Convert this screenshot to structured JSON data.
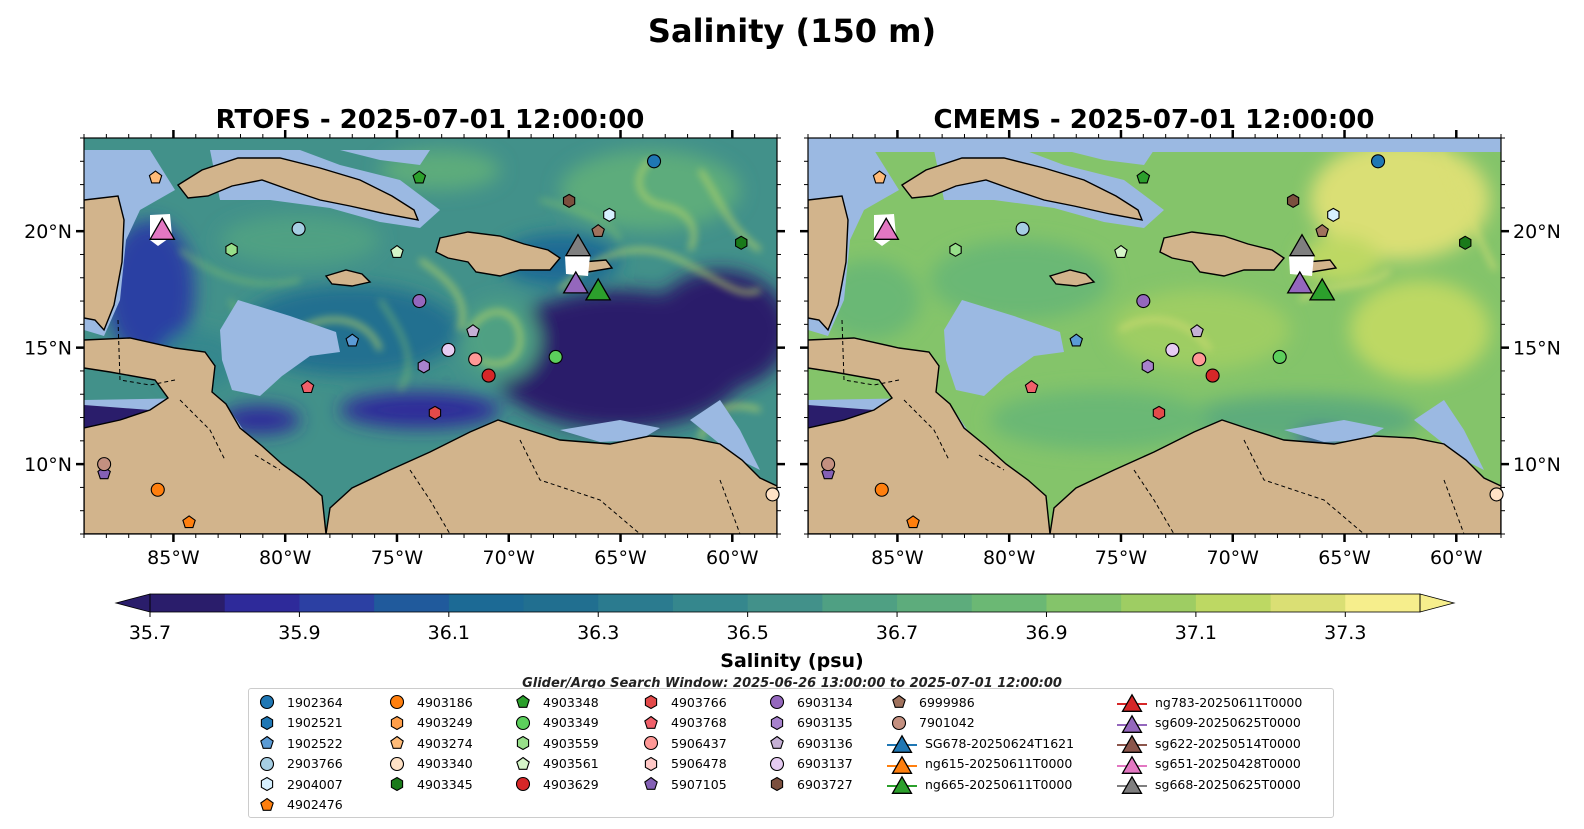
{
  "figure": {
    "suptitle": "Salinity (150 m)",
    "search_window": "Glider/Argo Search Window: 2025-06-26 13:00:00 to 2025-07-01 12:00:00"
  },
  "panels": [
    {
      "title": "RTOFS - 2025-07-01 12:00:00",
      "model": "RTOFS"
    },
    {
      "title": "CMEMS - 2025-07-01 12:00:00",
      "model": "CMEMS"
    }
  ],
  "map_extent": {
    "lon": [
      -89,
      -58
    ],
    "lat": [
      7,
      24
    ]
  },
  "axis_ticks": {
    "lon_labels": [
      "85°W",
      "80°W",
      "75°W",
      "70°W",
      "65°W",
      "60°W"
    ],
    "lon_values": [
      -85,
      -80,
      -75,
      -70,
      -65,
      -60
    ],
    "lat_labels": [
      "10°N",
      "15°N",
      "20°N"
    ],
    "lat_values": [
      10,
      15,
      20
    ]
  },
  "colors": {
    "land": "#d2b48c",
    "shelf": "#9bb9e2",
    "coast": "#000000"
  },
  "colorbar": {
    "label": "Salinity (psu)",
    "ticks": [
      "35.7",
      "35.9",
      "36.1",
      "36.3",
      "36.5",
      "36.7",
      "36.9",
      "37.1",
      "37.3"
    ],
    "tick_values": [
      35.7,
      35.9,
      36.1,
      36.3,
      36.5,
      36.7,
      36.9,
      37.1,
      37.3
    ],
    "vmin": 35.7,
    "vmax": 37.4,
    "step": 0.1,
    "colormap": "haline",
    "extend": "both",
    "colors": [
      "#2a1d6b",
      "#2e2a9a",
      "#2c40a3",
      "#205a9c",
      "#1c6a95",
      "#216f90",
      "#2b7b8f",
      "#35878d",
      "#42918a",
      "#4fa083",
      "#5dac7c",
      "#6bb874",
      "#84c46a",
      "#9ecd63",
      "#bdd863",
      "#dadf74",
      "#f6ee8c"
    ]
  },
  "markers": {
    "argo": [
      {
        "id": "1902364",
        "shape": "circle",
        "color": "#1f77b4",
        "lon": -63.5,
        "lat": 23.0
      },
      {
        "id": "1902521",
        "shape": "hexagon",
        "color": "#1f77b4",
        "lon": null,
        "lat": null
      },
      {
        "id": "1902522",
        "shape": "pentagon",
        "color": "#5b9bd5",
        "lon": -77.0,
        "lat": 15.3
      },
      {
        "id": "2903766",
        "shape": "circle",
        "color": "#a6cee3",
        "lon": -79.4,
        "lat": 20.1
      },
      {
        "id": "2904007",
        "shape": "hexagon",
        "color": "#d6f0ff",
        "lon": -65.5,
        "lat": 20.7
      },
      {
        "id": "4902476",
        "shape": "pentagon",
        "color": "#ff7f0e",
        "lon": -84.3,
        "lat": 7.5
      },
      {
        "id": "4903186",
        "shape": "circle",
        "color": "#ff7f0e",
        "lon": -85.7,
        "lat": 8.9
      },
      {
        "id": "4903249",
        "shape": "hexagon",
        "color": "#ff9f4a",
        "lon": null,
        "lat": null
      },
      {
        "id": "4903274",
        "shape": "pentagon",
        "color": "#ffbb78",
        "lon": -85.8,
        "lat": 22.3
      },
      {
        "id": "4903340",
        "shape": "circle",
        "color": "#ffe2c6",
        "lon": -58.2,
        "lat": 8.7
      },
      {
        "id": "4903345",
        "shape": "hexagon",
        "color": "#1a7a1a",
        "lon": -59.6,
        "lat": 19.5
      },
      {
        "id": "4903348",
        "shape": "pentagon",
        "color": "#2ca02c",
        "lon": -74.0,
        "lat": 22.3
      },
      {
        "id": "4903349",
        "shape": "circle",
        "color": "#5ccf5c",
        "lon": -67.9,
        "lat": 14.6
      },
      {
        "id": "4903559",
        "shape": "hexagon",
        "color": "#98df8a",
        "lon": -82.4,
        "lat": 19.2
      },
      {
        "id": "4903561",
        "shape": "pentagon",
        "color": "#d5f5c8",
        "lon": -75.0,
        "lat": 19.1
      },
      {
        "id": "4903629",
        "shape": "circle",
        "color": "#d62728",
        "lon": -70.9,
        "lat": 13.8
      },
      {
        "id": "4903766",
        "shape": "hexagon",
        "color": "#e34a4a",
        "lon": -73.3,
        "lat": 12.2
      },
      {
        "id": "4903768",
        "shape": "pentagon",
        "color": "#f0606a",
        "lon": -79.0,
        "lat": 13.3
      },
      {
        "id": "5906437",
        "shape": "circle",
        "color": "#ff9896",
        "lon": -71.5,
        "lat": 14.5
      },
      {
        "id": "5906478",
        "shape": "hexagon",
        "color": "#ffc8c6",
        "lon": null,
        "lat": null
      },
      {
        "id": "5907105",
        "shape": "pentagon",
        "color": "#8460b5",
        "lon": -88.1,
        "lat": 9.6
      },
      {
        "id": "6903134",
        "shape": "circle",
        "color": "#9467bd",
        "lon": -74.0,
        "lat": 17.0
      },
      {
        "id": "6903135",
        "shape": "hexagon",
        "color": "#a782cc",
        "lon": -73.8,
        "lat": 14.2
      },
      {
        "id": "6903136",
        "shape": "pentagon",
        "color": "#c5b0d5",
        "lon": -71.6,
        "lat": 15.7
      },
      {
        "id": "6903137",
        "shape": "circle",
        "color": "#e6ccf2",
        "lon": -72.7,
        "lat": 14.9
      },
      {
        "id": "6903727",
        "shape": "hexagon",
        "color": "#7b4f3e",
        "lon": -67.3,
        "lat": 21.3
      },
      {
        "id": "6999986",
        "shape": "pentagon",
        "color": "#a0725d",
        "lon": -66.0,
        "lat": 20.0
      },
      {
        "id": "7901042",
        "shape": "circle",
        "color": "#c49080",
        "lon": -88.1,
        "lat": 10.0
      }
    ],
    "gliders": [
      {
        "id": "SG678-20250624T1621",
        "color": "#1f77b4",
        "lon": null,
        "lat": null
      },
      {
        "id": "ng615-20250611T0000",
        "color": "#ff7f0e",
        "lon": null,
        "lat": null
      },
      {
        "id": "ng665-20250611T0000",
        "color": "#2ca02c",
        "lon": -66.0,
        "lat": 17.5
      },
      {
        "id": "ng783-20250611T0000",
        "color": "#d62728",
        "lon": null,
        "lat": null
      },
      {
        "id": "sg609-20250625T0000",
        "color": "#9467bd",
        "lon": -67.0,
        "lat": 17.8
      },
      {
        "id": "sg622-20250514T0000",
        "color": "#8c564b",
        "lon": null,
        "lat": null
      },
      {
        "id": "sg651-20250428T0000",
        "color": "#e377c2",
        "lon": -85.5,
        "lat": 20.1
      },
      {
        "id": "sg668-20250625T0000",
        "color": "#7f7f7f",
        "lon": -66.9,
        "lat": 19.4
      }
    ]
  }
}
